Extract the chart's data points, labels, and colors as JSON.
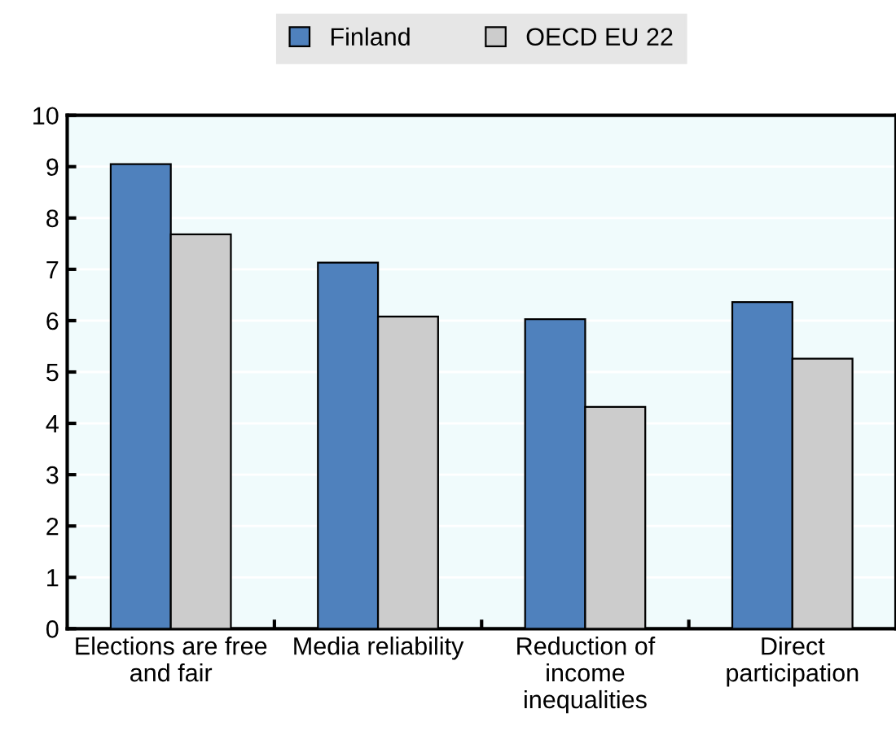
{
  "chart_data": {
    "type": "bar",
    "categories": [
      "Elections are free\nand fair",
      "Media reliability",
      "Reduction of\nincome\ninequalities",
      "Direct\nparticipation"
    ],
    "series": [
      {
        "name": "Finland",
        "color": "#4f81bd",
        "values": [
          9.05,
          7.13,
          6.03,
          6.36
        ]
      },
      {
        "name": "OECD EU 22",
        "color": "#cccccc",
        "values": [
          7.68,
          6.08,
          4.32,
          5.26
        ]
      }
    ],
    "ylim": [
      0,
      10
    ],
    "yticks": [
      0,
      1,
      2,
      3,
      4,
      5,
      6,
      7,
      8,
      9,
      10
    ],
    "grid": "y",
    "legend": "top"
  }
}
